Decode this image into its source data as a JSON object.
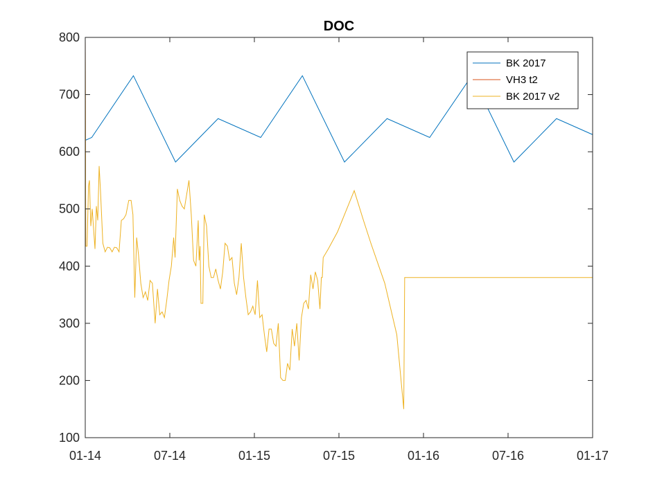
{
  "chart_data": {
    "type": "line",
    "title": "DOC",
    "xlabel": "",
    "ylabel": "",
    "x_ticks": [
      "01-14",
      "07-14",
      "01-15",
      "07-15",
      "01-16",
      "07-16",
      "01-17"
    ],
    "xlim": [
      "2014-01-01",
      "2017-01-01"
    ],
    "ylim": [
      100,
      800
    ],
    "y_ticks": [
      100,
      200,
      300,
      400,
      500,
      600,
      700,
      800
    ],
    "grid": false,
    "legend_position": "top-right",
    "series": [
      {
        "name": "BK 2017",
        "color": "#0072BD",
        "points": [
          [
            "2014-01-01",
            620
          ],
          [
            "2014-01-15",
            625
          ],
          [
            "2014-04-15",
            733
          ],
          [
            "2014-07-15",
            582
          ],
          [
            "2014-10-15",
            658
          ],
          [
            "2015-01-15",
            625
          ],
          [
            "2015-04-15",
            733
          ],
          [
            "2015-07-15",
            582
          ],
          [
            "2015-10-15",
            658
          ],
          [
            "2016-01-15",
            625
          ],
          [
            "2016-04-15",
            733
          ],
          [
            "2016-07-15",
            582
          ],
          [
            "2016-10-15",
            658
          ],
          [
            "2017-01-01",
            630
          ]
        ]
      },
      {
        "name": "VH3 t2",
        "color": "#D95319",
        "points": [
          [
            "2014-01-01",
            800
          ],
          [
            "2014-01-02",
            435
          ]
        ]
      },
      {
        "name": "BK 2017 v2",
        "color": "#EDB120",
        "points": [
          [
            "2014-01-01",
            800
          ],
          [
            "2014-01-02",
            435
          ],
          [
            "2014-01-05",
            435
          ],
          [
            "2014-01-08",
            540
          ],
          [
            "2014-01-10",
            550
          ],
          [
            "2014-01-13",
            470
          ],
          [
            "2014-01-16",
            500
          ],
          [
            "2014-01-19",
            465
          ],
          [
            "2014-01-22",
            430
          ],
          [
            "2014-01-25",
            505
          ],
          [
            "2014-01-28",
            480
          ],
          [
            "2014-01-31",
            575
          ],
          [
            "2014-02-03",
            530
          ],
          [
            "2014-02-08",
            440
          ],
          [
            "2014-02-13",
            425
          ],
          [
            "2014-02-18",
            433
          ],
          [
            "2014-02-23",
            432
          ],
          [
            "2014-02-28",
            425
          ],
          [
            "2014-03-05",
            433
          ],
          [
            "2014-03-10",
            432
          ],
          [
            "2014-03-15",
            425
          ],
          [
            "2014-03-20",
            480
          ],
          [
            "2014-03-25",
            483
          ],
          [
            "2014-03-30",
            490
          ],
          [
            "2014-04-05",
            515
          ],
          [
            "2014-04-10",
            515
          ],
          [
            "2014-04-14",
            490
          ],
          [
            "2014-04-18",
            345
          ],
          [
            "2014-04-22",
            450
          ],
          [
            "2014-04-26",
            420
          ],
          [
            "2014-05-01",
            370
          ],
          [
            "2014-05-06",
            345
          ],
          [
            "2014-05-11",
            355
          ],
          [
            "2014-05-16",
            340
          ],
          [
            "2014-05-21",
            375
          ],
          [
            "2014-05-26",
            370
          ],
          [
            "2014-06-01",
            300
          ],
          [
            "2014-06-06",
            360
          ],
          [
            "2014-06-11",
            315
          ],
          [
            "2014-06-16",
            320
          ],
          [
            "2014-06-21",
            310
          ],
          [
            "2014-06-26",
            340
          ],
          [
            "2014-07-01",
            375
          ],
          [
            "2014-07-06",
            400
          ],
          [
            "2014-07-11",
            450
          ],
          [
            "2014-07-14",
            415
          ],
          [
            "2014-07-19",
            535
          ],
          [
            "2014-07-24",
            515
          ],
          [
            "2014-07-29",
            505
          ],
          [
            "2014-08-03",
            500
          ],
          [
            "2014-08-08",
            525
          ],
          [
            "2014-08-13",
            550
          ],
          [
            "2014-08-18",
            490
          ],
          [
            "2014-08-23",
            410
          ],
          [
            "2014-08-28",
            400
          ],
          [
            "2014-09-02",
            480
          ],
          [
            "2014-09-04",
            410
          ],
          [
            "2014-09-06",
            435
          ],
          [
            "2014-09-08",
            335
          ],
          [
            "2014-09-12",
            335
          ],
          [
            "2014-09-15",
            490
          ],
          [
            "2014-09-20",
            470
          ],
          [
            "2014-09-25",
            400
          ],
          [
            "2014-09-30",
            380
          ],
          [
            "2014-10-05",
            380
          ],
          [
            "2014-10-10",
            395
          ],
          [
            "2014-10-15",
            375
          ],
          [
            "2014-10-20",
            360
          ],
          [
            "2014-10-25",
            390
          ],
          [
            "2014-10-30",
            440
          ],
          [
            "2014-11-04",
            435
          ],
          [
            "2014-11-09",
            410
          ],
          [
            "2014-11-14",
            415
          ],
          [
            "2014-11-19",
            370
          ],
          [
            "2014-11-24",
            350
          ],
          [
            "2014-11-29",
            380
          ],
          [
            "2014-12-04",
            440
          ],
          [
            "2014-12-09",
            380
          ],
          [
            "2014-12-14",
            345
          ],
          [
            "2014-12-19",
            315
          ],
          [
            "2014-12-24",
            320
          ],
          [
            "2014-12-29",
            330
          ],
          [
            "2015-01-03",
            315
          ],
          [
            "2015-01-08",
            375
          ],
          [
            "2015-01-13",
            310
          ],
          [
            "2015-01-18",
            315
          ],
          [
            "2015-01-23",
            280
          ],
          [
            "2015-01-28",
            250
          ],
          [
            "2015-02-02",
            290
          ],
          [
            "2015-02-07",
            290
          ],
          [
            "2015-02-12",
            265
          ],
          [
            "2015-02-17",
            260
          ],
          [
            "2015-02-22",
            300
          ],
          [
            "2015-02-27",
            205
          ],
          [
            "2015-03-04",
            200
          ],
          [
            "2015-03-09",
            200
          ],
          [
            "2015-03-14",
            230
          ],
          [
            "2015-03-19",
            218
          ],
          [
            "2015-03-24",
            290
          ],
          [
            "2015-03-29",
            260
          ],
          [
            "2015-04-03",
            300
          ],
          [
            "2015-04-08",
            235
          ],
          [
            "2015-04-13",
            310
          ],
          [
            "2015-04-18",
            335
          ],
          [
            "2015-04-23",
            340
          ],
          [
            "2015-04-28",
            325
          ],
          [
            "2015-05-03",
            385
          ],
          [
            "2015-05-08",
            360
          ],
          [
            "2015-05-13",
            390
          ],
          [
            "2015-05-18",
            375
          ],
          [
            "2015-05-23",
            325
          ],
          [
            "2015-05-26",
            380
          ],
          [
            "2015-05-28",
            380
          ],
          [
            "2015-05-30",
            415
          ],
          [
            "2015-06-10",
            430
          ],
          [
            "2015-06-30",
            460
          ],
          [
            "2015-07-20",
            500
          ],
          [
            "2015-08-05",
            532
          ],
          [
            "2015-08-25",
            480
          ],
          [
            "2015-09-10",
            440
          ],
          [
            "2015-10-10",
            370
          ],
          [
            "2015-11-05",
            280
          ],
          [
            "2015-11-20",
            150
          ],
          [
            "2015-11-22",
            380
          ],
          [
            "2017-01-01",
            380
          ]
        ]
      }
    ]
  }
}
